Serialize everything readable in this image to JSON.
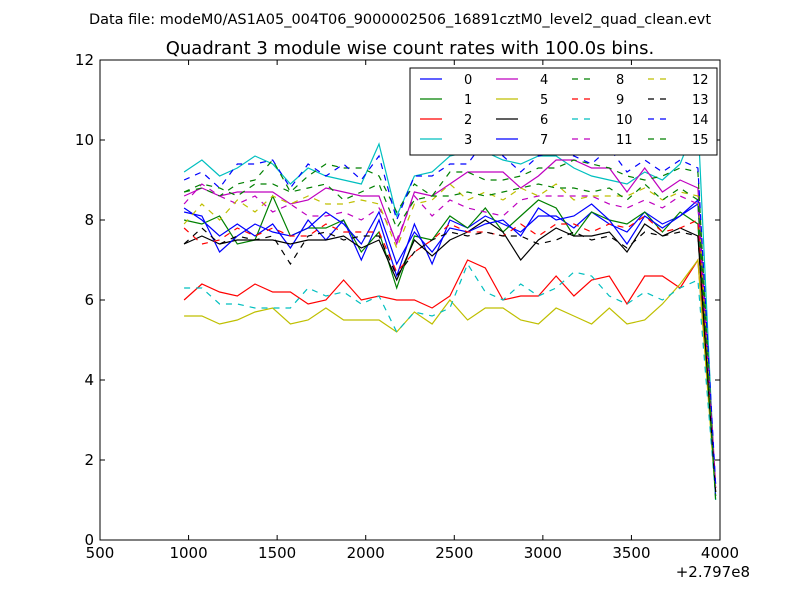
{
  "chart_data": {
    "type": "line",
    "suptitle": "Data file: modeM0/AS1A05_004T06_9000002506_16891cztM0_level2_quad_clean.evt",
    "title": "Quadrant 3 module wise count rates with 100.0s bins.",
    "xlabel": "",
    "ylabel": "",
    "xlim": [
      500,
      4000
    ],
    "ylim": [
      0,
      12
    ],
    "xticks": [
      500,
      1000,
      1500,
      2000,
      2500,
      3000,
      3500,
      4000
    ],
    "yticks": [
      0,
      2,
      4,
      6,
      8,
      10,
      12
    ],
    "x_offset_label": "+2.797e8",
    "legend_position": "top-right",
    "x": [
      975,
      1075,
      1175,
      1275,
      1375,
      1475,
      1575,
      1675,
      1775,
      1875,
      1975,
      2075,
      2175,
      2275,
      2375,
      2475,
      2575,
      2675,
      2775,
      2875,
      2975,
      3075,
      3175,
      3275,
      3375,
      3475,
      3575,
      3675,
      3775,
      3875,
      3975
    ],
    "series": [
      {
        "name": "0",
        "color": "#0000ff",
        "dash": "solid",
        "values": [
          8.3,
          8.0,
          7.6,
          7.9,
          7.6,
          7.9,
          7.3,
          8.0,
          7.5,
          8.0,
          7.0,
          8.0,
          6.6,
          7.9,
          6.9,
          8.0,
          7.8,
          8.1,
          7.9,
          7.7,
          8.1,
          8.1,
          7.8,
          8.2,
          7.9,
          7.7,
          8.2,
          7.9,
          8.1,
          8.4,
          1.3
        ]
      },
      {
        "name": "1",
        "color": "#008000",
        "dash": "solid",
        "values": [
          8.0,
          7.9,
          8.1,
          7.4,
          7.5,
          8.6,
          7.6,
          7.8,
          7.8,
          8.0,
          7.2,
          7.7,
          6.3,
          7.6,
          7.5,
          8.1,
          7.8,
          8.3,
          7.7,
          8.1,
          8.5,
          8.3,
          7.6,
          8.2,
          8.0,
          7.9,
          8.2,
          7.7,
          8.2,
          7.9,
          1.2
        ]
      },
      {
        "name": "2",
        "color": "#ff0000",
        "dash": "solid",
        "values": [
          6.0,
          6.4,
          6.2,
          6.1,
          6.4,
          6.2,
          6.2,
          5.9,
          6.0,
          6.5,
          6.0,
          6.1,
          6.0,
          6.0,
          5.8,
          6.1,
          7.0,
          6.8,
          6.0,
          6.1,
          6.1,
          6.6,
          6.1,
          6.5,
          6.6,
          5.9,
          6.6,
          6.6,
          6.3,
          7.0,
          1.3
        ]
      },
      {
        "name": "3",
        "color": "#00bfbf",
        "dash": "solid",
        "values": [
          9.2,
          9.5,
          9.1,
          9.3,
          9.6,
          9.4,
          8.9,
          9.3,
          9.1,
          9.0,
          8.9,
          9.9,
          8.1,
          9.1,
          9.2,
          9.6,
          9.7,
          9.7,
          9.5,
          9.4,
          9.6,
          9.6,
          9.3,
          9.1,
          9.0,
          8.9,
          9.2,
          9.0,
          9.4,
          10.5,
          1.0
        ]
      },
      {
        "name": "4",
        "color": "#bf00bf",
        "dash": "solid",
        "values": [
          8.6,
          8.8,
          8.6,
          8.7,
          8.7,
          8.7,
          8.4,
          8.5,
          8.8,
          8.7,
          8.6,
          8.6,
          7.4,
          8.7,
          8.6,
          8.9,
          9.2,
          9.2,
          9.2,
          8.8,
          9.1,
          9.5,
          9.5,
          9.3,
          9.3,
          8.7,
          9.3,
          8.7,
          9.0,
          8.8,
          1.4
        ]
      },
      {
        "name": "5",
        "color": "#bfbf00",
        "dash": "solid",
        "values": [
          5.6,
          5.6,
          5.4,
          5.5,
          5.7,
          5.8,
          5.4,
          5.5,
          5.8,
          5.5,
          5.5,
          5.5,
          5.2,
          5.7,
          5.4,
          6.0,
          5.5,
          5.8,
          5.8,
          5.5,
          5.4,
          5.8,
          5.6,
          5.4,
          5.8,
          5.4,
          5.5,
          5.9,
          6.4,
          7.0,
          1.1
        ]
      },
      {
        "name": "6",
        "color": "#000000",
        "dash": "solid",
        "values": [
          7.4,
          7.6,
          7.4,
          7.5,
          7.5,
          7.5,
          7.4,
          7.5,
          7.5,
          7.6,
          7.3,
          7.5,
          6.5,
          7.5,
          7.1,
          7.5,
          7.7,
          8.0,
          7.7,
          7.0,
          7.5,
          7.8,
          7.6,
          7.6,
          7.7,
          7.2,
          7.9,
          7.6,
          7.8,
          7.6,
          1.2
        ]
      },
      {
        "name": "7",
        "color": "#0000ff",
        "dash": "solid",
        "values": [
          8.2,
          8.1,
          7.2,
          7.6,
          7.9,
          7.7,
          7.6,
          7.8,
          8.2,
          7.9,
          7.4,
          8.2,
          6.9,
          7.7,
          7.2,
          7.8,
          7.7,
          7.9,
          8.0,
          7.6,
          8.3,
          8.0,
          8.1,
          8.4,
          8.0,
          7.4,
          8.1,
          7.8,
          8.1,
          8.5,
          1.1
        ]
      },
      {
        "name": "8",
        "color": "#008000",
        "dash": "dashed",
        "values": [
          8.7,
          8.8,
          8.6,
          8.9,
          9.0,
          9.5,
          8.7,
          9.1,
          9.4,
          9.3,
          9.3,
          9.1,
          8.2,
          8.9,
          8.6,
          9.2,
          9.2,
          9.0,
          9.0,
          9.1,
          9.3,
          9.3,
          9.5,
          9.4,
          9.3,
          9.1,
          9.0,
          9.1,
          9.3,
          9.2,
          1.1
        ]
      },
      {
        "name": "9",
        "color": "#ff0000",
        "dash": "dashed",
        "values": [
          7.8,
          7.4,
          7.5,
          7.8,
          7.6,
          7.8,
          7.6,
          7.6,
          7.9,
          7.7,
          7.7,
          7.7,
          6.7,
          7.2,
          7.5,
          7.9,
          7.7,
          7.7,
          7.6,
          7.9,
          7.6,
          7.9,
          7.9,
          7.7,
          7.9,
          7.8,
          8.1,
          7.7,
          7.8,
          8.0,
          1.3
        ]
      },
      {
        "name": "10",
        "color": "#00bfbf",
        "dash": "dashed",
        "values": [
          6.3,
          6.3,
          5.9,
          5.9,
          5.8,
          5.8,
          5.8,
          6.3,
          6.1,
          6.2,
          5.9,
          6.1,
          5.2,
          5.7,
          5.6,
          5.8,
          6.9,
          6.2,
          6.0,
          6.4,
          6.1,
          6.3,
          6.7,
          6.6,
          6.1,
          5.9,
          6.2,
          6.0,
          6.3,
          6.5,
          1.1
        ]
      },
      {
        "name": "11",
        "color": "#bf00bf",
        "dash": "dashed",
        "values": [
          8.4,
          8.9,
          8.6,
          8.4,
          8.6,
          8.2,
          8.4,
          8.1,
          8.1,
          8.2,
          8.0,
          8.3,
          7.5,
          8.6,
          8.1,
          8.5,
          8.3,
          8.2,
          8.1,
          8.5,
          8.6,
          8.6,
          8.6,
          8.6,
          8.4,
          8.3,
          8.5,
          8.3,
          8.6,
          8.4,
          1.2
        ]
      },
      {
        "name": "12",
        "color": "#bfbf00",
        "dash": "dashed",
        "values": [
          7.9,
          8.4,
          8.0,
          8.5,
          8.2,
          8.6,
          8.4,
          8.6,
          8.4,
          8.4,
          8.5,
          8.4,
          7.3,
          8.4,
          8.5,
          8.9,
          8.5,
          8.7,
          8.5,
          8.8,
          8.6,
          8.9,
          8.5,
          8.6,
          8.6,
          8.6,
          8.8,
          8.5,
          8.7,
          8.6,
          1.2
        ]
      },
      {
        "name": "13",
        "color": "#000000",
        "dash": "dashed",
        "values": [
          7.4,
          7.8,
          7.4,
          7.6,
          7.5,
          7.6,
          6.9,
          7.6,
          7.7,
          7.5,
          7.6,
          7.6,
          6.6,
          7.2,
          7.5,
          7.7,
          7.6,
          7.7,
          7.6,
          7.6,
          7.4,
          7.5,
          7.7,
          7.5,
          7.6,
          7.3,
          7.7,
          7.6,
          7.7,
          7.6,
          1.2
        ]
      },
      {
        "name": "14",
        "color": "#0000ff",
        "dash": "dashed",
        "values": [
          9.0,
          9.2,
          8.8,
          9.4,
          9.4,
          9.5,
          8.8,
          9.4,
          9.1,
          9.4,
          9.0,
          9.6,
          8.0,
          9.1,
          9.1,
          9.4,
          9.4,
          10.0,
          9.6,
          9.2,
          9.6,
          9.7,
          9.6,
          9.4,
          9.8,
          9.2,
          9.5,
          9.2,
          9.5,
          9.3,
          1.4
        ]
      },
      {
        "name": "15",
        "color": "#008000",
        "dash": "dashed",
        "values": [
          8.7,
          8.9,
          8.8,
          8.6,
          8.9,
          8.9,
          8.7,
          8.8,
          8.9,
          8.5,
          8.7,
          8.9,
          7.8,
          8.5,
          8.6,
          8.6,
          8.7,
          8.6,
          8.7,
          8.8,
          8.9,
          8.8,
          8.8,
          8.7,
          8.8,
          8.5,
          8.9,
          8.5,
          8.8,
          8.5,
          1.0
        ]
      }
    ]
  }
}
